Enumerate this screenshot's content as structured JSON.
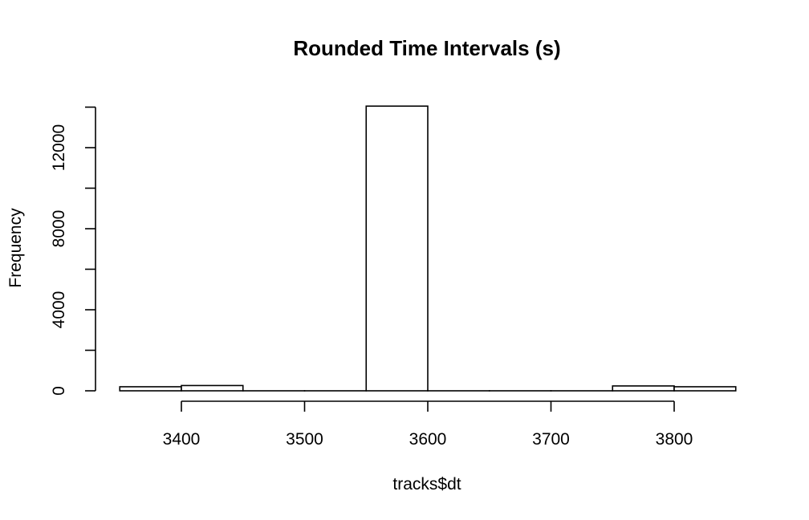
{
  "chart_data": {
    "type": "bar",
    "title": "Rounded Time Intervals (s)",
    "xlabel": "tracks$dt",
    "ylabel": "Frequency",
    "bins": [
      {
        "x0": 3350,
        "x1": 3400,
        "count": 200
      },
      {
        "x0": 3400,
        "x1": 3450,
        "count": 260
      },
      {
        "x0": 3450,
        "x1": 3500,
        "count": 0
      },
      {
        "x0": 3500,
        "x1": 3550,
        "count": 0
      },
      {
        "x0": 3550,
        "x1": 3600,
        "count": 14050
      },
      {
        "x0": 3600,
        "x1": 3650,
        "count": 0
      },
      {
        "x0": 3650,
        "x1": 3700,
        "count": 0
      },
      {
        "x0": 3700,
        "x1": 3750,
        "count": 0
      },
      {
        "x0": 3750,
        "x1": 3800,
        "count": 240
      },
      {
        "x0": 3800,
        "x1": 3850,
        "count": 200
      }
    ],
    "xticks": [
      3400,
      3500,
      3600,
      3700,
      3800
    ],
    "yticks": [
      0,
      2000,
      4000,
      6000,
      8000,
      10000,
      12000,
      14000
    ],
    "ytick_labels": [
      {
        "value": 0,
        "label": "0"
      },
      {
        "value": 4000,
        "label": "4000"
      },
      {
        "value": 8000,
        "label": "8000"
      },
      {
        "value": 12000,
        "label": "12000"
      }
    ],
    "xlim": [
      3350,
      3850
    ],
    "ylim": [
      0,
      14000
    ],
    "grid": false,
    "legend": "none"
  }
}
